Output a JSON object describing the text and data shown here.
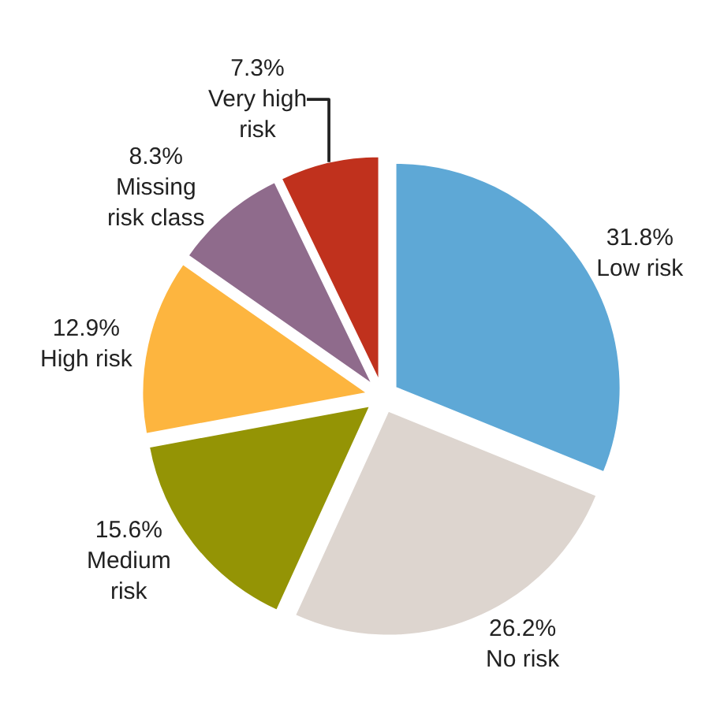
{
  "chart_data": {
    "type": "pie",
    "categories": [
      "Low risk",
      "No risk",
      "Medium risk",
      "High risk",
      "Missing risk class",
      "Very high risk"
    ],
    "values": [
      31.8,
      26.2,
      15.6,
      12.9,
      8.3,
      7.3
    ],
    "value_labels": [
      "31.8%",
      "26.2%",
      "15.6%",
      "12.9%",
      "8.3%",
      "7.3%"
    ],
    "colors": [
      "#5ea8d6",
      "#ddd5cf",
      "#949405",
      "#fdb53f",
      "#8f6b8c",
      "#c0311d"
    ],
    "legend": false
  }
}
